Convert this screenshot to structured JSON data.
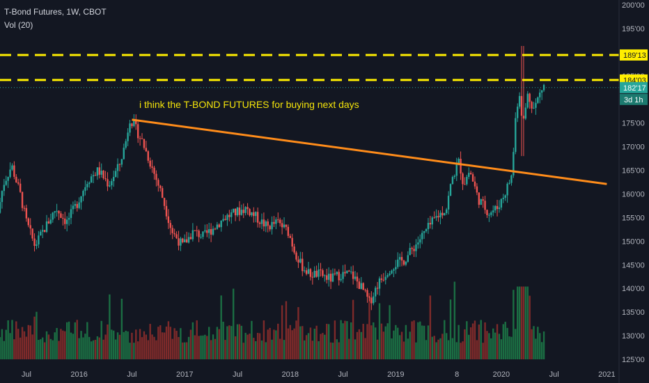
{
  "header": {
    "symbol_line": "T-Bond Futures, 1W, CBOT",
    "indicator": "Vol (20)"
  },
  "colors": {
    "background": "#131722",
    "up": "#26a69a",
    "down": "#ef5350",
    "vol_up": "#1b6e43",
    "vol_down": "#7e2a2a",
    "dash": "#ffee00",
    "trend": "#ff8c1a",
    "annotation": "#f5e50a",
    "last_price": "#26a69a"
  },
  "chart_data": {
    "type": "candlestick",
    "title": "T-Bond Futures, 1W, CBOT",
    "x_ticks": [
      "Jul",
      "2016",
      "Jul",
      "2017",
      "Jul",
      "2018",
      "Jul",
      "2019",
      "8",
      "2020",
      "Jul",
      "2021"
    ],
    "y_ticks": [
      "200'00",
      "195'00",
      "190'00",
      "185'00",
      "180'00",
      "175'00",
      "170'00",
      "165'00",
      "160'00",
      "155'00",
      "150'00",
      "145'00",
      "140'00",
      "135'00",
      "130'00",
      "125'00"
    ],
    "ylim": [
      125,
      200
    ],
    "xlim": [
      2015.25,
      2021.05
    ],
    "price_path": [
      [
        2015.25,
        156
      ],
      [
        2015.3,
        162
      ],
      [
        2015.38,
        166
      ],
      [
        2015.46,
        160
      ],
      [
        2015.52,
        154
      ],
      [
        2015.6,
        149
      ],
      [
        2015.7,
        153
      ],
      [
        2015.8,
        157
      ],
      [
        2015.9,
        154
      ],
      [
        2016.0,
        158
      ],
      [
        2016.1,
        163
      ],
      [
        2016.2,
        165
      ],
      [
        2016.3,
        162
      ],
      [
        2016.4,
        166
      ],
      [
        2016.46,
        171
      ],
      [
        2016.5,
        176
      ],
      [
        2016.55,
        174
      ],
      [
        2016.62,
        171
      ],
      [
        2016.72,
        165
      ],
      [
        2016.8,
        160
      ],
      [
        2016.9,
        152
      ],
      [
        2017.0,
        149
      ],
      [
        2017.1,
        152
      ],
      [
        2017.2,
        151
      ],
      [
        2017.3,
        153
      ],
      [
        2017.4,
        155
      ],
      [
        2017.5,
        156
      ],
      [
        2017.6,
        157
      ],
      [
        2017.7,
        155
      ],
      [
        2017.8,
        153
      ],
      [
        2017.9,
        154
      ],
      [
        2018.0,
        152
      ],
      [
        2018.06,
        148
      ],
      [
        2018.12,
        145
      ],
      [
        2018.2,
        143
      ],
      [
        2018.3,
        143
      ],
      [
        2018.4,
        142
      ],
      [
        2018.5,
        143
      ],
      [
        2018.6,
        143
      ],
      [
        2018.7,
        140
      ],
      [
        2018.77,
        137
      ],
      [
        2018.85,
        141
      ],
      [
        2018.95,
        144
      ],
      [
        2019.0,
        145
      ],
      [
        2019.1,
        146
      ],
      [
        2019.2,
        149
      ],
      [
        2019.3,
        152
      ],
      [
        2019.4,
        155
      ],
      [
        2019.5,
        157
      ],
      [
        2019.55,
        163
      ],
      [
        2019.62,
        167
      ],
      [
        2019.66,
        162
      ],
      [
        2019.72,
        165
      ],
      [
        2019.8,
        159
      ],
      [
        2019.9,
        156
      ],
      [
        2019.98,
        157
      ],
      [
        2020.05,
        160
      ],
      [
        2020.12,
        164
      ],
      [
        2020.16,
        178
      ],
      [
        2020.2,
        182
      ],
      [
        2020.22,
        174
      ],
      [
        2020.27,
        181
      ],
      [
        2020.33,
        178
      ],
      [
        2020.38,
        181
      ],
      [
        2020.42,
        183
      ]
    ],
    "volume": {
      "ylim": [
        0,
        120
      ],
      "note": "weekly volume bars"
    },
    "annotations": [
      {
        "type": "hline",
        "value": 189.4,
        "label": "189'13"
      },
      {
        "type": "hline",
        "value": 184.1,
        "label": "184'03"
      },
      {
        "type": "trendline",
        "from": [
          2016.5,
          175.7
        ],
        "to": [
          2021.0,
          162.1
        ]
      },
      {
        "type": "text",
        "x": 2016.57,
        "y": 178.2,
        "text": "i think the T-BOND FUTURES for buying next days"
      },
      {
        "type": "hline_dotted",
        "value": 182.5
      }
    ],
    "last_price_label": "182'17",
    "countdown_label": "3d 1h",
    "grid": false,
    "legend": "top-left"
  }
}
